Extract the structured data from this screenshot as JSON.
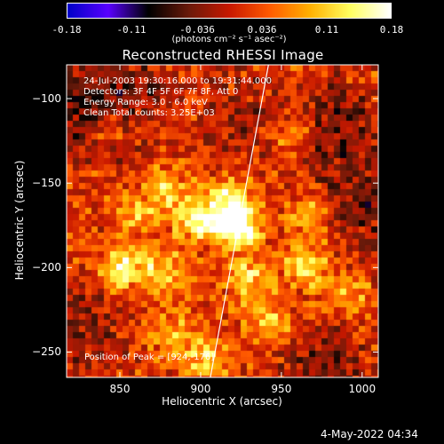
{
  "colorbar": {
    "ticks": [
      "-0.18",
      "-0.11",
      "-0.036",
      "0.036",
      "0.11",
      "0.18"
    ],
    "unit_label": "(photons cm⁻² s⁻¹ asec⁻²)",
    "range": [
      -0.18,
      0.18
    ],
    "colors": [
      "#0000c8",
      "#5a00ff",
      "#000000",
      "#6a1a0a",
      "#c81800",
      "#ff5a00",
      "#ffb000",
      "#ffff60",
      "#ffffff"
    ]
  },
  "chart": {
    "title": "Reconstructed RHESSI Image",
    "xlabel": "Heliocentric X (arcsec)",
    "ylabel": "Heliocentric Y (arcsec)",
    "info_lines": [
      "24-Jul-2003 19:30:16.000 to 19:31:44.000",
      "Detectors: 3F 4F 5F 6F 7F 8F, Att 0",
      "Energy Range: 3.0 - 6.0 keV",
      "Clean     Total counts: 3.25E+03"
    ],
    "peak_text": "Position of Peak = [924,-176]"
  },
  "footer": {
    "date": "4-May-2022 04:34"
  },
  "chart_data": {
    "type": "heatmap",
    "title": "Reconstructed RHESSI Image",
    "xlabel": "Heliocentric X (arcsec)",
    "ylabel": "Heliocentric Y (arcsec)",
    "xlim": [
      817,
      1010
    ],
    "ylim": [
      -265,
      -80
    ],
    "x_ticks": [
      850,
      900,
      950,
      1000
    ],
    "y_ticks": [
      -100,
      -150,
      -200,
      -250
    ],
    "colorbar_range": [
      -0.18,
      0.18
    ],
    "peak": [
      924,
      -176
    ],
    "limb_line": [
      [
        906,
        -265
      ],
      [
        942,
        -80
      ]
    ],
    "bright_sources": [
      {
        "x": 924,
        "y": -176,
        "value": 0.18
      },
      {
        "x": 900,
        "y": -172,
        "value": 0.15
      },
      {
        "x": 851,
        "y": -200,
        "value": 0.13
      },
      {
        "x": 965,
        "y": -198,
        "value": 0.12
      },
      {
        "x": 875,
        "y": -202,
        "value": 0.1
      },
      {
        "x": 930,
        "y": -208,
        "value": 0.1
      },
      {
        "x": 918,
        "y": -160,
        "value": 0.11
      },
      {
        "x": 903,
        "y": -255,
        "value": 0.1
      },
      {
        "x": 880,
        "y": -155,
        "value": 0.09
      },
      {
        "x": 945,
        "y": -232,
        "value": 0.09
      },
      {
        "x": 990,
        "y": -218,
        "value": 0.08
      },
      {
        "x": 842,
        "y": -118,
        "value": 0.06
      },
      {
        "x": 958,
        "y": -122,
        "value": 0.06
      },
      {
        "x": 882,
        "y": -238,
        "value": 0.07
      },
      {
        "x": 968,
        "y": -168,
        "value": 0.07
      },
      {
        "x": 858,
        "y": -168,
        "value": 0.08
      }
    ],
    "dark_regions": [
      {
        "x": 828,
        "y": -110,
        "value": -0.08
      },
      {
        "x": 985,
        "y": -118,
        "value": -0.07
      },
      {
        "x": 1000,
        "y": -165,
        "value": -0.06
      },
      {
        "x": 975,
        "y": -255,
        "value": -0.06
      },
      {
        "x": 830,
        "y": -232,
        "value": -0.05
      },
      {
        "x": 925,
        "y": -108,
        "value": -0.04
      },
      {
        "x": 860,
        "y": -92,
        "value": -0.05
      }
    ]
  }
}
